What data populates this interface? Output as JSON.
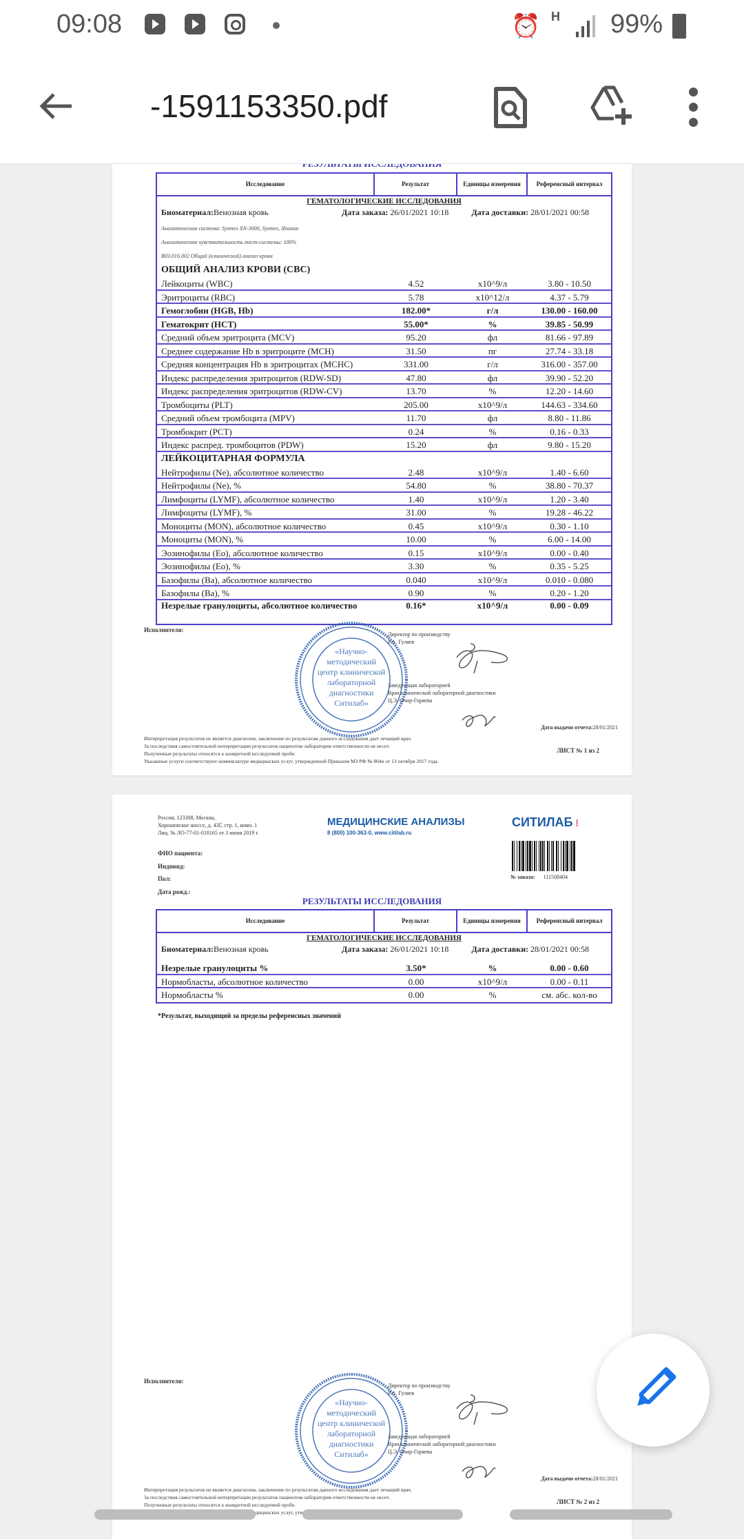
{
  "status_bar": {
    "time": "09:08",
    "network": "H",
    "battery": "99%",
    "icons": [
      "youtube-icon",
      "youtube-icon",
      "instagram-icon",
      "dot",
      "alarm-icon",
      "signal-icon",
      "battery-icon"
    ]
  },
  "toolbar": {
    "title": "-1591153350.pdf",
    "icons": [
      "back-arrow-icon",
      "search-document-icon",
      "add-to-drive-icon",
      "more-vert-icon"
    ]
  },
  "page1": {
    "results_title": "РЕЗУЛЬТАТЫ ИССЛЕДОВАНИЯ",
    "columns": [
      "Исследование",
      "Результат",
      "Единицы измерения",
      "Референсный интервал"
    ],
    "group_title": "ГЕМАТОЛОГИЧЕСКИЕ ИССЛЕДОВАНИЯ",
    "biomaterial_label": "Биоматериал:",
    "biomaterial": "Венозная кровь",
    "order_date_label": "Дата заказа:",
    "order_date": "26/01/2021 10:18",
    "delivery_date_label": "Дата доставки:",
    "delivery_date": "28/01/2021 00:58",
    "notes": [
      "Аналитическая система: Sysmex XN-3000, Sysmex, Япония",
      "Аналитическая чувствительность тест-системы: 100%",
      "B03.016.002 Общий (клинический) анализ крови"
    ],
    "sections": [
      {
        "title": "ОБЩИЙ АНАЛИЗ КРОВИ (CBC)",
        "rows": [
          {
            "name": "Лейкоциты (WBC)",
            "result": "4.52",
            "unit": "x10^9/л",
            "ref": "3.80 - 10.50",
            "flag": false
          },
          {
            "name": "Эритроциты (RBC)",
            "result": "5.78",
            "unit": "x10^12/л",
            "ref": "4.37 - 5.79",
            "flag": false
          },
          {
            "name": "Гемоглобин (HGB, Hb)",
            "result": "182.00*",
            "unit": "г/л",
            "ref": "130.00 - 160.00",
            "flag": true
          },
          {
            "name": "Гематокрит (HCT)",
            "result": "55.00*",
            "unit": "%",
            "ref": "39.85 - 50.99",
            "flag": true
          },
          {
            "name": "Средний объем эритроцита (MCV)",
            "result": "95.20",
            "unit": "фл",
            "ref": "81.66 - 97.89",
            "flag": false
          },
          {
            "name": "Среднее содержание Hb в эритроците (MCH)",
            "result": "31.50",
            "unit": "пг",
            "ref": "27.74 - 33.18",
            "flag": false
          },
          {
            "name": "Средняя концентрация Hb в эритроцитах (MCHC)",
            "result": "331.00",
            "unit": "г/л",
            "ref": "316.00 - 357.00",
            "flag": false
          },
          {
            "name": "Индекс распределения эритроцитов (RDW-SD)",
            "result": "47.80",
            "unit": "фл",
            "ref": "39.90 - 52.20",
            "flag": false
          },
          {
            "name": "Индекс распределения эритроцитов (RDW-CV)",
            "result": "13.70",
            "unit": "%",
            "ref": "12.20 - 14.60",
            "flag": false
          },
          {
            "name": "Тромбоциты (PLT)",
            "result": "205.00",
            "unit": "x10^9/л",
            "ref": "144.63 - 334.60",
            "flag": false
          },
          {
            "name": "Средний объем тромбоцита (MPV)",
            "result": "11.70",
            "unit": "фл",
            "ref": "8.80 - 11.86",
            "flag": false
          },
          {
            "name": "Тромбокрит (PCT)",
            "result": "0.24",
            "unit": "%",
            "ref": "0.16 - 0.33",
            "flag": false
          },
          {
            "name": "Индекс распред. тромбоцитов (PDW)",
            "result": "15.20",
            "unit": "фл",
            "ref": "9.80 - 15.20",
            "flag": false
          }
        ]
      },
      {
        "title": "ЛЕЙКОЦИТАРНАЯ ФОРМУЛА",
        "rows": [
          {
            "name": "Нейтрофилы (Ne), абсолютное количество",
            "result": "2.48",
            "unit": "x10^9/л",
            "ref": "1.40 - 6.60",
            "flag": false
          },
          {
            "name": "Нейтрофилы (Ne), %",
            "result": "54.80",
            "unit": "%",
            "ref": "38.80 - 70.37",
            "flag": false
          },
          {
            "name": "Лимфоциты (LYMF), абсолютное количество",
            "result": "1.40",
            "unit": "x10^9/л",
            "ref": "1.20 - 3.40",
            "flag": false
          },
          {
            "name": "Лимфоциты (LYMF), %",
            "result": "31.00",
            "unit": "%",
            "ref": "19.28 - 46.22",
            "flag": false
          },
          {
            "name": "Моноциты (MON), абсолютное количество",
            "result": "0.45",
            "unit": "x10^9/л",
            "ref": "0.30 - 1.10",
            "flag": false
          },
          {
            "name": "Моноциты (MON), %",
            "result": "10.00",
            "unit": "%",
            "ref": "6.00 - 14.00",
            "flag": false
          },
          {
            "name": "Эозинофилы (Eo), абсолютное количество",
            "result": "0.15",
            "unit": "x10^9/л",
            "ref": "0.00 - 0.40",
            "flag": false
          },
          {
            "name": "Эозинофилы (Eo), %",
            "result": "3.30",
            "unit": "%",
            "ref": "0.35 - 5.25",
            "flag": false
          },
          {
            "name": "Базофилы (Ba), абсолютное количество",
            "result": "0.040",
            "unit": "x10^9/л",
            "ref": "0.010 - 0.080",
            "flag": false
          },
          {
            "name": "Базофилы (Ba), %",
            "result": "0.90",
            "unit": "%",
            "ref": "0.20 - 1.20",
            "flag": false
          },
          {
            "name": "Незрелые гранулоциты, абсолютное количество",
            "result": "0.16*",
            "unit": "x10^9/л",
            "ref": "0.00 - 0.09",
            "flag": true
          }
        ]
      }
    ],
    "sheet": "ЛИСТ № 1 из 2"
  },
  "page2": {
    "address": [
      "Россия, 123308, Москва,",
      "Хорошевское шоссе, д. 43Г, стр. 1, комн. 1",
      "Лиц. № ЛО-77-01-018165 от 3 июня 2019 г."
    ],
    "brand_title": "МЕДИЦИНСКИЕ АНАЛИЗЫ",
    "brand_contacts": "8 (800) 100-363-0, www.citilab.ru",
    "logo_text": "СИТИЛАБ",
    "patient_fields": [
      "ФИО пациента:",
      "Индивид:",
      "Пол:",
      "Дата рожд.:"
    ],
    "order_no_label": "№ заказа:",
    "order_no": "111508404",
    "results_title": "РЕЗУЛЬТАТЫ ИССЛЕДОВАНИЯ",
    "rows": [
      {
        "name": "Незрелые гранулоциты %",
        "result": "3.50*",
        "unit": "%",
        "ref": "0.00 - 0.60",
        "flag": true
      },
      {
        "name": "Нормобласты, абсолютное количество",
        "result": "0.00",
        "unit": "x10^9/л",
        "ref": "0.00 - 0.11",
        "flag": false
      },
      {
        "name": "Нормобласты %",
        "result": "0.00",
        "unit": "%",
        "ref": "см. абс. кол-во",
        "flag": false
      }
    ],
    "footnote": "*Результат, выходящий за пределы референсных значений",
    "sheet": "ЛИСТ № 2 из 2"
  },
  "footer": {
    "executors_label": "Исполнители:",
    "director_title": "Директор по производству",
    "director_name": "Р.А. Гуляев",
    "head_title": "Заведующая лабораторией",
    "head_title2": "Врач клинической лабораторной диагностики",
    "head_name": "Ц.Э. Очир-Горяева",
    "issue_date_label": "Дата выдачи отчета:",
    "issue_date": "28/01/2021",
    "disclaimers": [
      "Интерпретация результатов не является диагнозом, заключение по результатам данного исследования дает лечащий врач.",
      "За последствия самостоятельной интерпретации результатов пациентом лаборатория ответственности не несет.",
      "Полученные результаты относятся к конкретной исследуемой пробе.",
      "Указанные услуги соответствуют номенклатуре медицинских услуг, утвержденной Приказом МЗ РФ № 804н от 13 октября 2017 года."
    ],
    "stamp_center": [
      "«Научно-",
      "методический",
      "центр клинической",
      "лабораторной",
      "диагностики",
      "Ситилаб»"
    ],
    "stamp_ring": "ОБЩЕСТВО С ОГРАНИЧЕННОЙ ОТВЕТСТВЕННОСТЬЮ • ОГРН • МОСКВА •"
  },
  "colors": {
    "table_border": "#4a3fc9",
    "stamp": "#2b5fb0",
    "brand_blue": "#1d5aa6",
    "logo_red": "#d2344e",
    "fab_icon": "#1a73e8"
  },
  "fab": {
    "icon": "pencil-edit-icon"
  }
}
